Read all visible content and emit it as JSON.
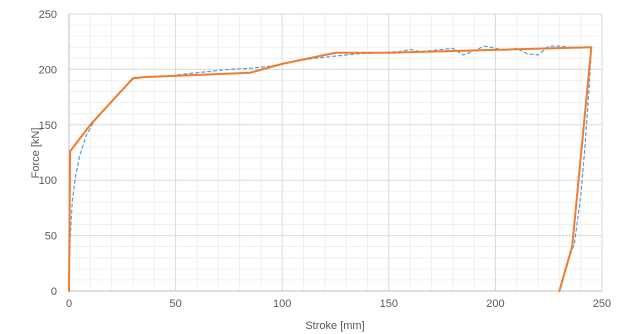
{
  "chart_data": {
    "type": "line",
    "xlabel": "Stroke [mm]",
    "ylabel": "Force [kN]",
    "xlim": [
      0,
      250
    ],
    "ylim": [
      0,
      250
    ],
    "x_ticks": [
      0,
      50,
      100,
      150,
      200,
      250
    ],
    "y_ticks": [
      0,
      50,
      100,
      150,
      200,
      250
    ],
    "x_minor_step": 10,
    "y_minor_step": 10,
    "grid": true,
    "legend": "none",
    "series": [
      {
        "style": "dashed",
        "color": "#5B9BD5",
        "points": [
          [
            0,
            0
          ],
          [
            0.5,
            45
          ],
          [
            1.5,
            80
          ],
          [
            3,
            103
          ],
          [
            5,
            122
          ],
          [
            8,
            140
          ],
          [
            12,
            154
          ],
          [
            18,
            167
          ],
          [
            24,
            180
          ],
          [
            30,
            191
          ],
          [
            35,
            193
          ],
          [
            45,
            193.5
          ],
          [
            55,
            196
          ],
          [
            65,
            198
          ],
          [
            75,
            200
          ],
          [
            85,
            201
          ],
          [
            95,
            203
          ],
          [
            105,
            207
          ],
          [
            115,
            210
          ],
          [
            125,
            212
          ],
          [
            135,
            214
          ],
          [
            145,
            215
          ],
          [
            155,
            216
          ],
          [
            160,
            218
          ],
          [
            165,
            216
          ],
          [
            170,
            217
          ],
          [
            175,
            218
          ],
          [
            180,
            219
          ],
          [
            185,
            213
          ],
          [
            190,
            217
          ],
          [
            195,
            221
          ],
          [
            200,
            219
          ],
          [
            205,
            217
          ],
          [
            210,
            219
          ],
          [
            215,
            214
          ],
          [
            220,
            213
          ],
          [
            225,
            221
          ],
          [
            230,
            221
          ],
          [
            235,
            220
          ],
          [
            240,
            220
          ],
          [
            245,
            220
          ],
          [
            244,
            185
          ],
          [
            242,
            130
          ],
          [
            240,
            85
          ],
          [
            237,
            42
          ],
          [
            235,
            33
          ],
          [
            233,
            22
          ],
          [
            231,
            5
          ],
          [
            230,
            0
          ]
        ]
      },
      {
        "style": "solid",
        "color": "#ED7D31",
        "points": [
          [
            0,
            0
          ],
          [
            0.5,
            126
          ],
          [
            10,
            150
          ],
          [
            30,
            192
          ],
          [
            35,
            193
          ],
          [
            85,
            197
          ],
          [
            100,
            205
          ],
          [
            125,
            215
          ],
          [
            150,
            215
          ],
          [
            245,
            220
          ],
          [
            236,
            40
          ],
          [
            230,
            0
          ]
        ]
      }
    ]
  }
}
